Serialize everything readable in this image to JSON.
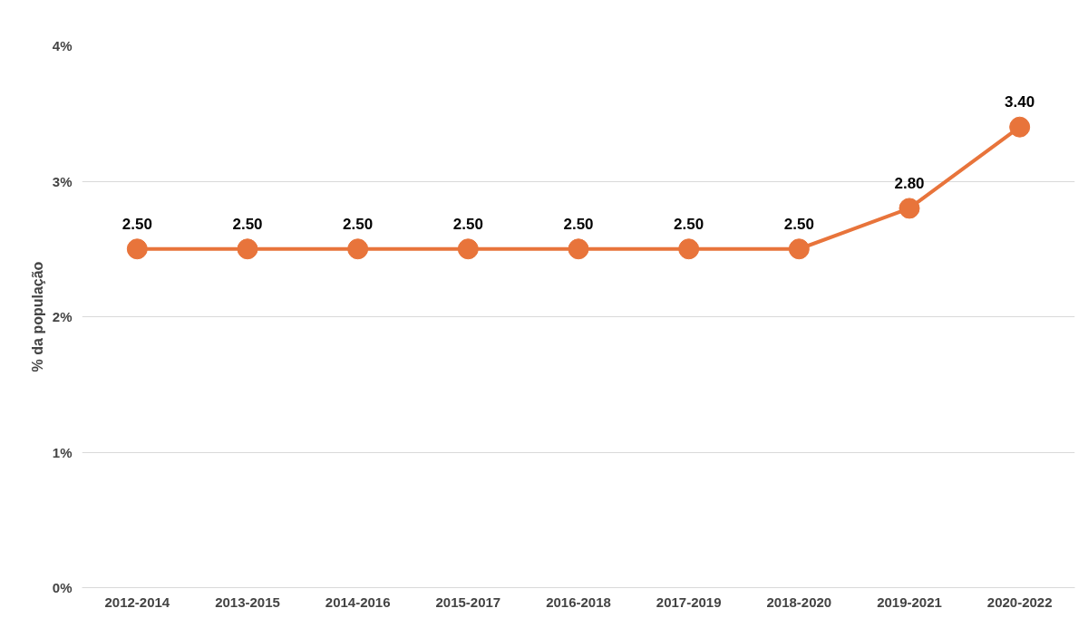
{
  "chart_data": {
    "type": "line",
    "ylabel": "% da população",
    "categories": [
      "2012-2014",
      "2013-2015",
      "2014-2016",
      "2015-2017",
      "2016-2018",
      "2017-2019",
      "2018-2020",
      "2019-2021",
      "2020-2022"
    ],
    "series": [
      {
        "color": "#e8743b",
        "values": [
          2.5,
          2.5,
          2.5,
          2.5,
          2.5,
          2.5,
          2.5,
          2.8,
          3.4
        ],
        "value_labels": [
          "2.50",
          "2.50",
          "2.50",
          "2.50",
          "2.50",
          "2.50",
          "2.50",
          "2.80",
          "3.40"
        ]
      }
    ],
    "ylim": [
      0,
      4
    ],
    "yticks": [
      {
        "value": 0,
        "label": "0%"
      },
      {
        "value": 1,
        "label": "1%"
      },
      {
        "value": 2,
        "label": "2%"
      },
      {
        "value": 3,
        "label": "3%"
      },
      {
        "value": 4,
        "label": "4%"
      }
    ],
    "grid": "y",
    "marker": "circle",
    "line_style": "solid"
  }
}
